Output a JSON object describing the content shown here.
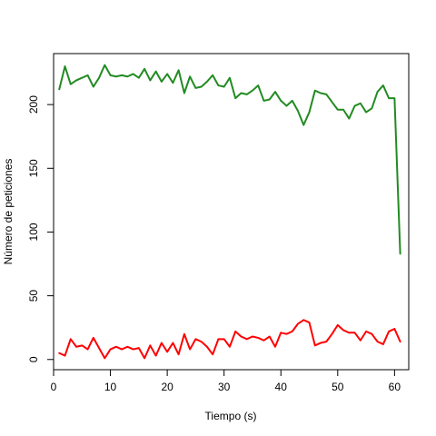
{
  "chart_data": {
    "type": "line",
    "title": "",
    "xlabel": "Tiempo (s)",
    "ylabel": "Número de peticiones",
    "xlim": [
      0,
      62.5
    ],
    "ylim": [
      -8,
      240
    ],
    "xticks": [
      0,
      10,
      20,
      30,
      40,
      50,
      60
    ],
    "yticks": [
      0,
      50,
      100,
      150,
      200
    ],
    "grid": false,
    "legend": "none",
    "x": [
      1,
      2,
      3,
      4,
      5,
      6,
      7,
      8,
      9,
      10,
      11,
      12,
      13,
      14,
      15,
      16,
      17,
      18,
      19,
      20,
      21,
      22,
      23,
      24,
      25,
      26,
      27,
      28,
      29,
      30,
      31,
      32,
      33,
      34,
      35,
      36,
      37,
      38,
      39,
      40,
      41,
      42,
      43,
      44,
      45,
      46,
      47,
      48,
      49,
      50,
      51,
      52,
      53,
      54,
      55,
      56,
      57,
      58,
      59,
      60,
      61
    ],
    "series": [
      {
        "color": "#228B22",
        "values": [
          212,
          230,
          216,
          219,
          221,
          223,
          214,
          221,
          231,
          223,
          222,
          223,
          222,
          224,
          221,
          228,
          219,
          226,
          218,
          224,
          217,
          227,
          209,
          222,
          213,
          214,
          218,
          223,
          215,
          214,
          221,
          205,
          209,
          208,
          211,
          215,
          203,
          204,
          210,
          203,
          199,
          203,
          195,
          184,
          194,
          211,
          209,
          208,
          202,
          196,
          196,
          189,
          199,
          201,
          194,
          197,
          210,
          215,
          205,
          205,
          83
        ]
      },
      {
        "color": "#FF0000",
        "values": [
          5,
          3,
          16,
          10,
          11,
          8,
          17,
          9,
          1,
          8,
          10,
          8,
          10,
          8,
          9,
          1,
          11,
          3,
          13,
          6,
          13,
          4,
          20,
          8,
          16,
          14,
          10,
          4,
          16,
          16,
          10,
          22,
          18,
          16,
          18,
          17,
          15,
          18,
          10,
          21,
          20,
          22,
          28,
          31,
          29,
          11,
          13,
          14,
          20,
          27,
          23,
          21,
          21,
          15,
          22,
          20,
          14,
          12,
          22,
          24,
          14
        ]
      }
    ]
  }
}
